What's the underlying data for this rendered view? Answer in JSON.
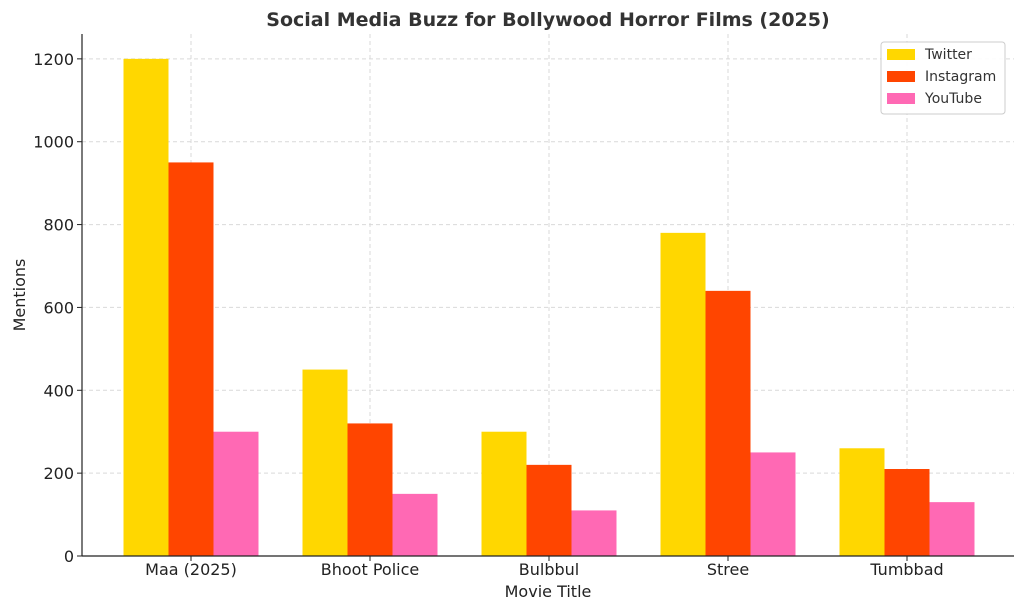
{
  "chart_data": {
    "type": "bar",
    "title": "Social Media Buzz for Bollywood Horror Films (2025)",
    "xlabel": "Movie Title",
    "ylabel": "Mentions",
    "categories": [
      "Maa (2025)",
      "Bhoot Police",
      "Bulbbul",
      "Stree",
      "Tumbbad"
    ],
    "series": [
      {
        "name": "Twitter",
        "color": "#FFD700",
        "values": [
          1200,
          450,
          300,
          780,
          260
        ]
      },
      {
        "name": "Instagram",
        "color": "#FF4500",
        "values": [
          950,
          320,
          220,
          640,
          210
        ]
      },
      {
        "name": "YouTube",
        "color": "#FF69B4",
        "values": [
          300,
          150,
          110,
          250,
          130
        ]
      }
    ],
    "ylim": [
      0,
      1260
    ],
    "yticks": [
      0,
      200,
      400,
      600,
      800,
      1000,
      1200
    ],
    "grid": true,
    "legend_position": "top-right"
  }
}
